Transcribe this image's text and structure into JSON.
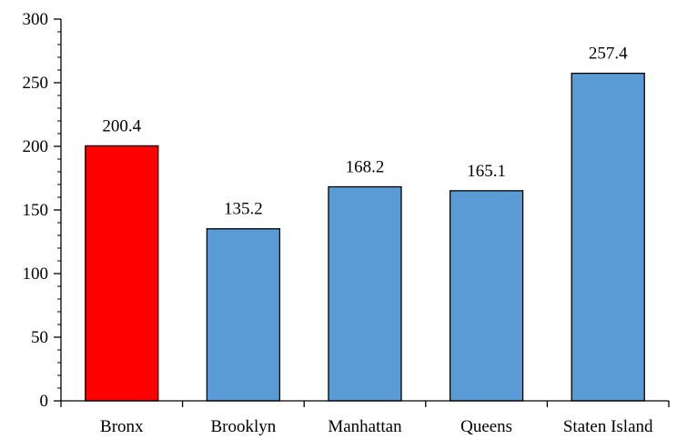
{
  "chart_data": {
    "type": "bar",
    "categories": [
      "Bronx",
      "Brooklyn",
      "Manhattan",
      "Queens",
      "Staten Island"
    ],
    "values": [
      200.4,
      135.2,
      168.2,
      165.1,
      257.4
    ],
    "data_labels": [
      "200.4",
      "135.2",
      "168.2",
      "165.1",
      "257.4"
    ],
    "bar_colors": [
      "#ff0000",
      "#5b9bd5",
      "#5b9bd5",
      "#5b9bd5",
      "#5b9bd5"
    ],
    "highlight_color": "#ff0000",
    "default_color": "#5b9bd5",
    "ylim": [
      0,
      300
    ],
    "yticks": [
      0,
      50,
      100,
      150,
      200,
      250,
      300
    ],
    "ytick_labels": [
      "0",
      "50",
      "100",
      "150",
      "200",
      "250",
      "300"
    ],
    "y_minor_step": 10,
    "title": "",
    "xlabel": "",
    "ylabel": "",
    "grid": false,
    "legend": false
  }
}
